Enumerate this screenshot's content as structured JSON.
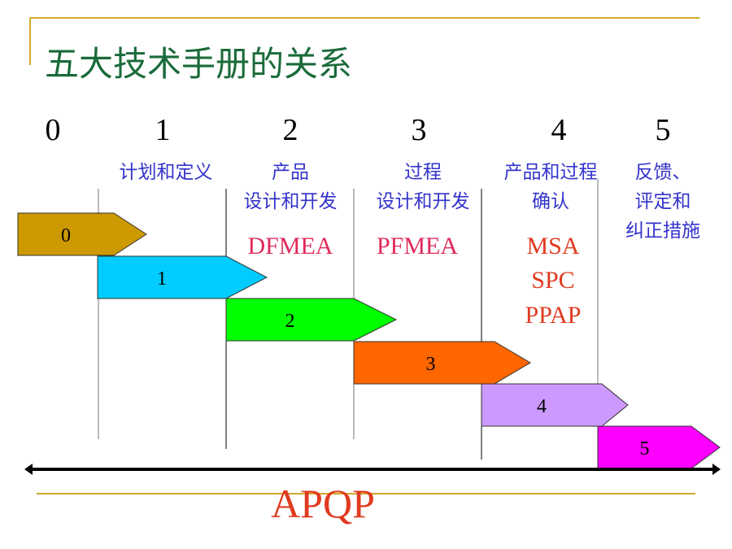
{
  "title": "五大技术手册的关系",
  "colors": {
    "title": "#1a6b3a",
    "accent_line": "#d4a82a",
    "phase_label": "#3333cc",
    "tool_fmea": "#e02a5a",
    "tool_other": "#e03a20",
    "apqp": "#e03a20"
  },
  "phases": [
    {
      "number": "0",
      "label_lines": [],
      "tools": [],
      "color": "#cc9900"
    },
    {
      "number": "1",
      "label_lines": [
        "计划和定义"
      ],
      "tools": [],
      "color": "#00ccff"
    },
    {
      "number": "2",
      "label_lines": [
        "产品",
        "设计和开发"
      ],
      "tools": [
        "DFMEA"
      ],
      "color": "#00ff00"
    },
    {
      "number": "3",
      "label_lines": [
        "过程",
        "设计和开发"
      ],
      "tools": [
        "PFMEA"
      ],
      "color": "#ff6600"
    },
    {
      "number": "4",
      "label_lines": [
        "产品和过程",
        "确认"
      ],
      "tools": [
        "MSA",
        "SPC",
        "PPAP"
      ],
      "color": "#cc99ff"
    },
    {
      "number": "5",
      "label_lines": [
        "反馈、",
        "评定和",
        "纠正措施"
      ],
      "tools": [],
      "color": "#ff00ff"
    }
  ],
  "timeline_label": "APQP"
}
